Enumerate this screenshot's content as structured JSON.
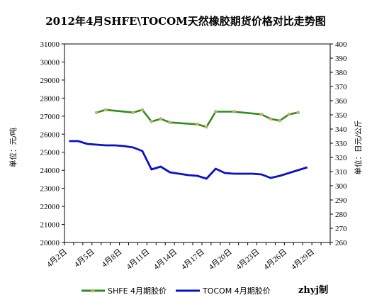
{
  "chart_data": {
    "type": "line",
    "title": "2012年4月SHFE\\TOCOM天然橡胶期货价格对比走势图",
    "y_left_label": "单位：元/吨",
    "y_right_label": "单位：日元/公斤",
    "y_left_range": [
      20000,
      31000
    ],
    "y_left_step": 1000,
    "y_right_range": [
      260,
      400
    ],
    "y_right_step": 10,
    "x_ticks": [
      "4月2日",
      "4月5日",
      "4月8日",
      "4月11日",
      "4月14日",
      "4月17日",
      "4月20日",
      "4月23日",
      "4月26日",
      "4月29日"
    ],
    "x": [
      "4月2日",
      "4月3日",
      "4月4日",
      "4月5日",
      "4月6日",
      "4月7日",
      "4月8日",
      "4月9日",
      "4月10日",
      "4月11日",
      "4月12日",
      "4月13日",
      "4月14日",
      "4月15日",
      "4月16日",
      "4月17日",
      "4月18日",
      "4月19日",
      "4月20日",
      "4月21日",
      "4月22日",
      "4月23日",
      "4月24日",
      "4月25日",
      "4月26日",
      "4月27日",
      "4月28日"
    ],
    "series": [
      {
        "name": "SHFE 4月期胶价",
        "axis": "left",
        "color": "#2e8b22",
        "marker_color": "#c9b06a",
        "values": [
          null,
          null,
          null,
          27200,
          27350,
          null,
          null,
          27200,
          27350,
          26700,
          26850,
          26650,
          null,
          null,
          26550,
          26400,
          27250,
          null,
          27250,
          null,
          null,
          27100,
          26850,
          26750,
          27100,
          27200,
          null
        ]
      },
      {
        "name": "TOCOM 4月期胶价",
        "axis": "right",
        "color": "#0a10c8",
        "values": [
          331.5,
          331.5,
          329.5,
          329,
          328.5,
          328.5,
          328,
          327,
          324.5,
          311.5,
          313.5,
          309.5,
          308.5,
          307.5,
          307,
          305,
          312,
          309,
          308.5,
          308.5,
          308.5,
          308,
          305.5,
          307,
          309,
          311,
          313
        ]
      }
    ],
    "legend_position": "bottom",
    "grid": false
  },
  "watermark": "zhyj制"
}
